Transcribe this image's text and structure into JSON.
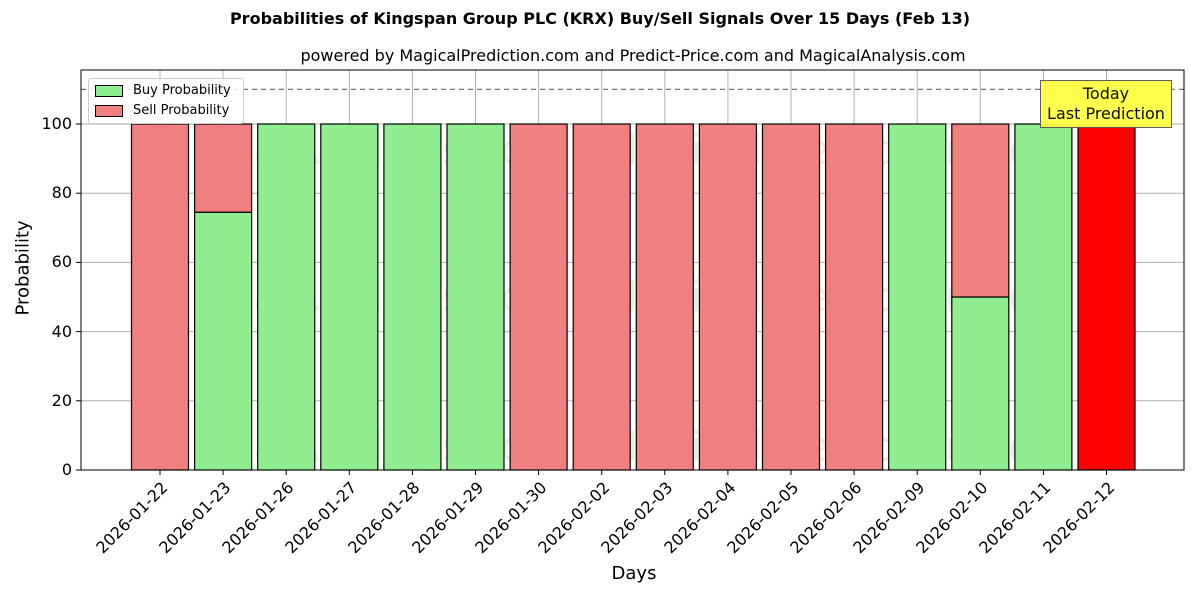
{
  "title": "Probabilities of Kingspan Group PLC (KRX) Buy/Sell Signals Over 15 Days (Feb 13)",
  "subtitle": "powered by MagicalPrediction.com and Predict-Price.com and MagicalAnalysis.com",
  "watermarks": [
    "MagicalAnalysis.com",
    "MagicalPrediction.com"
  ],
  "annotation": {
    "line1": "Today",
    "line2": "Last Prediction"
  },
  "legend": {
    "buy": "Buy Probability",
    "sell": "Sell Probability"
  },
  "colors": {
    "buy": "#90ee90",
    "sell": "#f08080",
    "today_sell": "#ff0000",
    "annotation_bg": "#ffff44"
  },
  "chart_data": {
    "type": "bar",
    "stacked": true,
    "title": "Probabilities of Kingspan Group PLC (KRX) Buy/Sell Signals Over 15 Days (Feb 13)",
    "subtitle": "powered by MagicalPrediction.com and Predict-Price.com and MagicalAnalysis.com",
    "xlabel": "Days",
    "ylabel": "Probability",
    "ylim": [
      0,
      115
    ],
    "yticks": [
      0,
      20,
      40,
      60,
      80,
      100
    ],
    "reference_line": 110,
    "grid": true,
    "legend_position": "upper left",
    "categories": [
      "2026-01-22",
      "2026-01-23",
      "2026-01-26",
      "2026-01-27",
      "2026-01-28",
      "2026-01-29",
      "2026-01-30",
      "2026-02-02",
      "2026-02-03",
      "2026-02-04",
      "2026-02-05",
      "2026-02-06",
      "2026-02-09",
      "2026-02-10",
      "2026-02-11",
      "2026-02-12"
    ],
    "series": [
      {
        "name": "Buy Probability",
        "values": [
          0,
          74.5,
          100,
          100,
          100,
          100,
          0,
          0,
          0,
          0,
          0,
          0,
          100,
          50,
          100,
          0
        ]
      },
      {
        "name": "Sell Probability",
        "values": [
          100,
          25.5,
          0,
          0,
          0,
          0,
          100,
          100,
          100,
          100,
          100,
          100,
          0,
          50,
          0,
          100
        ]
      }
    ]
  }
}
